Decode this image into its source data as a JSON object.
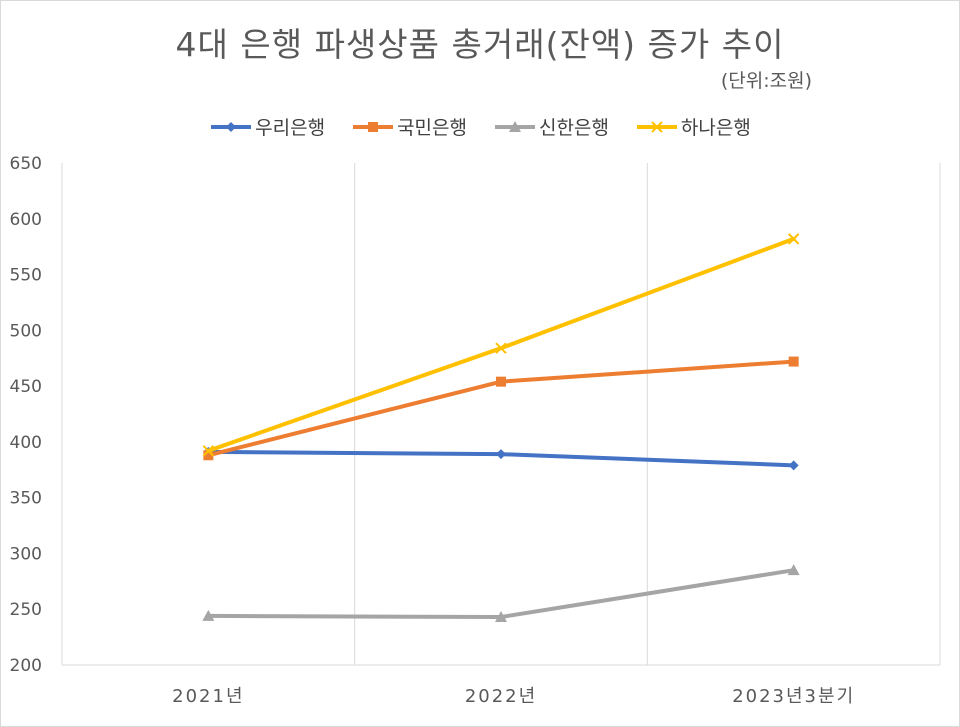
{
  "chart_data": {
    "type": "line",
    "title": "4대 은행 파생상품 총거래(잔액) 증가 추이",
    "subtitle": "(단위:조원)",
    "categories": [
      "2021년",
      "2022년",
      "2023년3분기"
    ],
    "ylim": [
      200,
      650
    ],
    "yticks": [
      200,
      250,
      300,
      350,
      400,
      450,
      500,
      550,
      600,
      650
    ],
    "grid": "vertical",
    "legend_position": "top",
    "series": [
      {
        "name": "우리은행",
        "values": [
          391,
          389,
          379
        ],
        "color": "#4472C4",
        "marker": "diamond"
      },
      {
        "name": "국민은행",
        "values": [
          388,
          454,
          472
        ],
        "color": "#ED7D31",
        "marker": "square"
      },
      {
        "name": "신한은행",
        "values": [
          244,
          243,
          285
        ],
        "color": "#A5A5A5",
        "marker": "triangle"
      },
      {
        "name": "하나은행",
        "values": [
          392,
          484,
          582
        ],
        "color": "#FFC000",
        "marker": "x"
      }
    ]
  }
}
